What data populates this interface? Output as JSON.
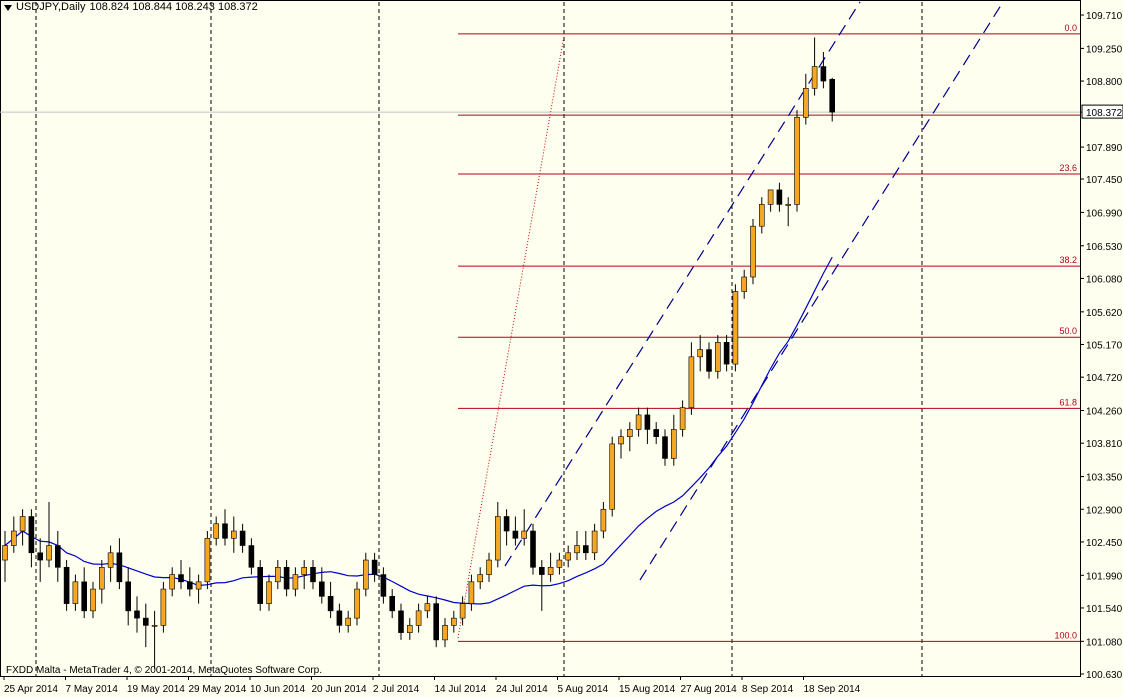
{
  "header": {
    "symbol_timeframe": "USDJPY,Daily",
    "ohlc": "108.824 108.844 108.243 108.372"
  },
  "footer": {
    "credit": "FXDD Malta - MetaTrader 4, © 2001-2014, MetaQuotes Software Corp."
  },
  "colors": {
    "background": "#fffff0",
    "bull": "#f5a623",
    "bear": "#000000",
    "moving_average": "#0000cd",
    "channel": "#00008b",
    "fibonacci": "#b0001a",
    "trend_dots": "#cc0000",
    "separator": "#000000"
  },
  "chart_data": {
    "type": "candlestick",
    "symbol": "USDJPY",
    "timeframe": "Daily",
    "price_axis": {
      "ticks": [
        "109.710",
        "109.250",
        "108.800",
        "108.372",
        "107.890",
        "107.450",
        "106.990",
        "106.530",
        "106.080",
        "105.620",
        "105.170",
        "104.720",
        "104.260",
        "103.810",
        "103.350",
        "102.900",
        "102.450",
        "101.990",
        "101.540",
        "101.080",
        "100.630"
      ],
      "current_price": "108.372",
      "range": [
        100.63,
        109.71
      ]
    },
    "time_axis": {
      "labels": [
        "25 Apr 2014",
        "7 May 2014",
        "19 May 2014",
        "29 May 2014",
        "10 Jun 2014",
        "20 Jun 2014",
        "2 Jul 2014",
        "14 Jul 2014",
        "24 Jul 2014",
        "5 Aug 2014",
        "15 Aug 2014",
        "27 Aug 2014",
        "8 Sep 2014",
        "18 Sep 2014"
      ]
    },
    "fibonacci_levels": [
      {
        "label": "0.0",
        "price": 109.45
      },
      {
        "label": "",
        "price": 108.33
      },
      {
        "label": "23.6",
        "price": 107.52
      },
      {
        "label": "38.2",
        "price": 106.25
      },
      {
        "label": "50.0",
        "price": 105.27
      },
      {
        "label": "61.8",
        "price": 104.29
      },
      {
        "label": "100.0",
        "price": 101.08
      }
    ],
    "candles": [
      {
        "o": 102.2,
        "h": 102.6,
        "l": 101.9,
        "c": 102.4
      },
      {
        "o": 102.4,
        "h": 102.8,
        "l": 102.3,
        "c": 102.6
      },
      {
        "o": 102.6,
        "h": 102.9,
        "l": 102.4,
        "c": 102.8
      },
      {
        "o": 102.8,
        "h": 102.9,
        "l": 102.1,
        "c": 102.3
      },
      {
        "o": 102.3,
        "h": 102.5,
        "l": 101.9,
        "c": 102.2
      },
      {
        "o": 102.2,
        "h": 103.0,
        "l": 102.1,
        "c": 102.4
      },
      {
        "o": 102.4,
        "h": 102.6,
        "l": 101.9,
        "c": 102.1
      },
      {
        "o": 102.1,
        "h": 102.2,
        "l": 101.5,
        "c": 101.6
      },
      {
        "o": 101.6,
        "h": 102.0,
        "l": 101.5,
        "c": 101.9
      },
      {
        "o": 101.9,
        "h": 102.1,
        "l": 101.4,
        "c": 101.5
      },
      {
        "o": 101.5,
        "h": 101.9,
        "l": 101.4,
        "c": 101.8
      },
      {
        "o": 101.8,
        "h": 102.2,
        "l": 101.6,
        "c": 102.1
      },
      {
        "o": 102.1,
        "h": 102.4,
        "l": 101.9,
        "c": 102.3
      },
      {
        "o": 102.3,
        "h": 102.5,
        "l": 101.8,
        "c": 101.9
      },
      {
        "o": 101.9,
        "h": 102.1,
        "l": 101.3,
        "c": 101.5
      },
      {
        "o": 101.5,
        "h": 101.7,
        "l": 101.2,
        "c": 101.4
      },
      {
        "o": 101.4,
        "h": 101.6,
        "l": 101.0,
        "c": 101.3
      },
      {
        "o": 101.3,
        "h": 101.5,
        "l": 100.7,
        "c": 101.3
      },
      {
        "o": 101.3,
        "h": 101.9,
        "l": 101.2,
        "c": 101.8
      },
      {
        "o": 101.8,
        "h": 102.1,
        "l": 101.7,
        "c": 102.0
      },
      {
        "o": 102.0,
        "h": 102.2,
        "l": 101.8,
        "c": 101.9
      },
      {
        "o": 101.9,
        "h": 102.1,
        "l": 101.7,
        "c": 101.8
      },
      {
        "o": 101.8,
        "h": 102.0,
        "l": 101.6,
        "c": 101.9
      },
      {
        "o": 101.9,
        "h": 102.6,
        "l": 101.8,
        "c": 102.5
      },
      {
        "o": 102.5,
        "h": 102.8,
        "l": 102.4,
        "c": 102.7
      },
      {
        "o": 102.7,
        "h": 102.9,
        "l": 102.4,
        "c": 102.5
      },
      {
        "o": 102.5,
        "h": 102.8,
        "l": 102.3,
        "c": 102.6
      },
      {
        "o": 102.6,
        "h": 102.7,
        "l": 102.3,
        "c": 102.4
      },
      {
        "o": 102.4,
        "h": 102.5,
        "l": 102.0,
        "c": 102.1
      },
      {
        "o": 102.1,
        "h": 102.2,
        "l": 101.5,
        "c": 101.6
      },
      {
        "o": 101.6,
        "h": 102.0,
        "l": 101.5,
        "c": 101.9
      },
      {
        "o": 101.9,
        "h": 102.2,
        "l": 101.8,
        "c": 102.1
      },
      {
        "o": 102.1,
        "h": 102.2,
        "l": 101.7,
        "c": 101.8
      },
      {
        "o": 101.8,
        "h": 102.1,
        "l": 101.7,
        "c": 102.0
      },
      {
        "o": 102.0,
        "h": 102.2,
        "l": 101.8,
        "c": 102.1
      },
      {
        "o": 102.1,
        "h": 102.2,
        "l": 101.8,
        "c": 101.9
      },
      {
        "o": 101.9,
        "h": 102.1,
        "l": 101.6,
        "c": 101.7
      },
      {
        "o": 101.7,
        "h": 101.9,
        "l": 101.4,
        "c": 101.5
      },
      {
        "o": 101.5,
        "h": 101.6,
        "l": 101.2,
        "c": 101.3
      },
      {
        "o": 101.3,
        "h": 101.5,
        "l": 101.2,
        "c": 101.4
      },
      {
        "o": 101.4,
        "h": 101.9,
        "l": 101.3,
        "c": 101.8
      },
      {
        "o": 101.8,
        "h": 102.3,
        "l": 101.7,
        "c": 102.2
      },
      {
        "o": 102.2,
        "h": 102.3,
        "l": 101.9,
        "c": 102.0
      },
      {
        "o": 102.0,
        "h": 102.1,
        "l": 101.6,
        "c": 101.7
      },
      {
        "o": 101.7,
        "h": 101.8,
        "l": 101.4,
        "c": 101.5
      },
      {
        "o": 101.5,
        "h": 101.6,
        "l": 101.1,
        "c": 101.2
      },
      {
        "o": 101.2,
        "h": 101.4,
        "l": 101.1,
        "c": 101.3
      },
      {
        "o": 101.3,
        "h": 101.6,
        "l": 101.2,
        "c": 101.5
      },
      {
        "o": 101.5,
        "h": 101.7,
        "l": 101.4,
        "c": 101.6
      },
      {
        "o": 101.6,
        "h": 101.7,
        "l": 101.0,
        "c": 101.1
      },
      {
        "o": 101.1,
        "h": 101.4,
        "l": 101.0,
        "c": 101.3
      },
      {
        "o": 101.3,
        "h": 101.5,
        "l": 101.2,
        "c": 101.4
      },
      {
        "o": 101.4,
        "h": 101.7,
        "l": 101.3,
        "c": 101.6
      },
      {
        "o": 101.6,
        "h": 102.0,
        "l": 101.5,
        "c": 101.9
      },
      {
        "o": 101.9,
        "h": 102.1,
        "l": 101.8,
        "c": 102.0
      },
      {
        "o": 102.0,
        "h": 102.3,
        "l": 101.9,
        "c": 102.2
      },
      {
        "o": 102.2,
        "h": 103.0,
        "l": 102.1,
        "c": 102.8
      },
      {
        "o": 102.8,
        "h": 102.9,
        "l": 102.4,
        "c": 102.6
      },
      {
        "o": 102.6,
        "h": 102.8,
        "l": 102.4,
        "c": 102.5
      },
      {
        "o": 102.5,
        "h": 102.9,
        "l": 102.4,
        "c": 102.6
      },
      {
        "o": 102.6,
        "h": 102.7,
        "l": 102.0,
        "c": 102.1
      },
      {
        "o": 102.1,
        "h": 102.2,
        "l": 101.5,
        "c": 102.0
      },
      {
        "o": 102.0,
        "h": 102.3,
        "l": 101.9,
        "c": 102.1
      },
      {
        "o": 102.1,
        "h": 102.3,
        "l": 102.0,
        "c": 102.2
      },
      {
        "o": 102.2,
        "h": 102.4,
        "l": 102.1,
        "c": 102.3
      },
      {
        "o": 102.3,
        "h": 102.6,
        "l": 102.2,
        "c": 102.4
      },
      {
        "o": 102.4,
        "h": 102.6,
        "l": 102.2,
        "c": 102.3
      },
      {
        "o": 102.3,
        "h": 102.7,
        "l": 102.2,
        "c": 102.6
      },
      {
        "o": 102.6,
        "h": 103.0,
        "l": 102.5,
        "c": 102.9
      },
      {
        "o": 102.9,
        "h": 103.9,
        "l": 102.8,
        "c": 103.8
      },
      {
        "o": 103.8,
        "h": 104.0,
        "l": 103.6,
        "c": 103.9
      },
      {
        "o": 103.9,
        "h": 104.1,
        "l": 103.7,
        "c": 104.0
      },
      {
        "o": 104.0,
        "h": 104.3,
        "l": 103.9,
        "c": 104.2
      },
      {
        "o": 104.2,
        "h": 104.3,
        "l": 103.8,
        "c": 104.0
      },
      {
        "o": 104.0,
        "h": 104.1,
        "l": 103.8,
        "c": 103.9
      },
      {
        "o": 103.9,
        "h": 104.0,
        "l": 103.5,
        "c": 103.6
      },
      {
        "o": 103.6,
        "h": 104.2,
        "l": 103.5,
        "c": 104.0
      },
      {
        "o": 104.0,
        "h": 104.4,
        "l": 103.9,
        "c": 104.3
      },
      {
        "o": 104.3,
        "h": 105.2,
        "l": 104.2,
        "c": 105.0
      },
      {
        "o": 105.0,
        "h": 105.3,
        "l": 104.8,
        "c": 105.1
      },
      {
        "o": 105.1,
        "h": 105.2,
        "l": 104.7,
        "c": 104.8
      },
      {
        "o": 104.8,
        "h": 105.3,
        "l": 104.7,
        "c": 105.2
      },
      {
        "o": 105.2,
        "h": 105.3,
        "l": 104.8,
        "c": 104.9
      },
      {
        "o": 104.9,
        "h": 106.0,
        "l": 104.8,
        "c": 105.9
      },
      {
        "o": 105.9,
        "h": 106.2,
        "l": 105.8,
        "c": 106.1
      },
      {
        "o": 106.1,
        "h": 106.9,
        "l": 106.0,
        "c": 106.8
      },
      {
        "o": 106.8,
        "h": 107.2,
        "l": 106.7,
        "c": 107.1
      },
      {
        "o": 107.1,
        "h": 107.3,
        "l": 107.0,
        "c": 107.3
      },
      {
        "o": 107.3,
        "h": 107.4,
        "l": 107.0,
        "c": 107.1
      },
      {
        "o": 107.1,
        "h": 107.2,
        "l": 106.8,
        "c": 107.1
      },
      {
        "o": 107.1,
        "h": 108.4,
        "l": 107.0,
        "c": 108.3
      },
      {
        "o": 108.3,
        "h": 108.9,
        "l": 108.2,
        "c": 108.7
      },
      {
        "o": 108.7,
        "h": 109.4,
        "l": 108.6,
        "c": 109.0
      },
      {
        "o": 109.0,
        "h": 109.2,
        "l": 108.7,
        "c": 108.8
      },
      {
        "o": 108.824,
        "h": 108.844,
        "l": 108.243,
        "c": 108.372
      }
    ]
  }
}
